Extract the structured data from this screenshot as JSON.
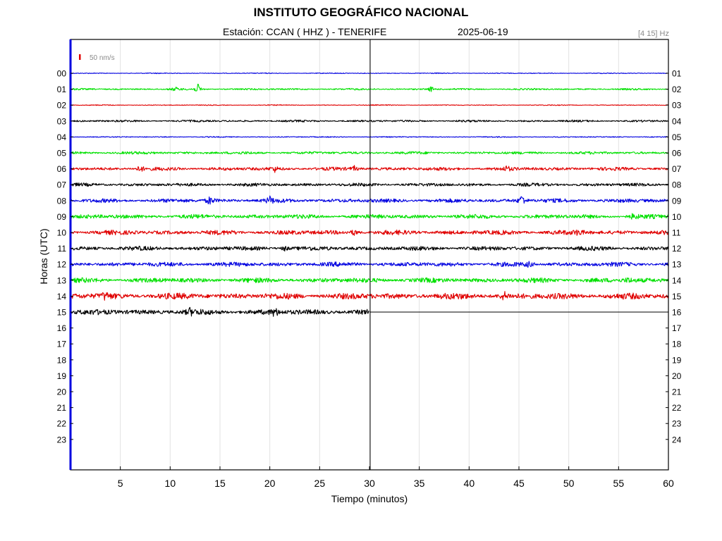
{
  "header": {
    "title": "INSTITUTO GEOGRÁFICO NACIONAL",
    "station": "Estación:  CCAN ( HHZ ) - TENERIFE",
    "date": "2025-06-19",
    "filter": "[4 15] Hz"
  },
  "scale_bar": {
    "label": "50 nm/s",
    "color": "#e00000"
  },
  "colors": {
    "blue": "#0000e0",
    "green": "#00e000",
    "red": "#e00000",
    "black": "#000000"
  },
  "chart_data": {
    "type": "line",
    "title": "INSTITUTO GEOGRÁFICO NACIONAL",
    "xlabel": "Tiempo (minutos)",
    "ylabel": "Horas (UTC)",
    "xlim": [
      0,
      60
    ],
    "x_ticks": [
      "5",
      "10",
      "15",
      "20",
      "25",
      "30",
      "35",
      "40",
      "45",
      "50",
      "55",
      "60"
    ],
    "x_tick_values": [
      5,
      10,
      15,
      20,
      25,
      30,
      35,
      40,
      45,
      50,
      55,
      60
    ],
    "y_labels_left": [
      "00",
      "01",
      "02",
      "03",
      "04",
      "05",
      "06",
      "07",
      "08",
      "09",
      "10",
      "11",
      "12",
      "13",
      "14",
      "15",
      "16",
      "17",
      "18",
      "19",
      "20",
      "21",
      "22",
      "23"
    ],
    "y_labels_right": [
      "01",
      "02",
      "03",
      "04",
      "05",
      "06",
      "07",
      "08",
      "09",
      "10",
      "11",
      "12",
      "13",
      "14",
      "15",
      "16",
      "17",
      "18",
      "19",
      "20",
      "21",
      "22",
      "23",
      "24"
    ],
    "grid": true,
    "series": [
      {
        "hour": 0,
        "color": "blue",
        "amplitude": 0.5,
        "end_minute": 60,
        "events": []
      },
      {
        "hour": 1,
        "color": "green",
        "amplitude": 1.0,
        "end_minute": 60,
        "events": [
          [
            10.5,
            3
          ],
          [
            12.8,
            7
          ],
          [
            36.2,
            4
          ]
        ]
      },
      {
        "hour": 2,
        "color": "red",
        "amplitude": 0.5,
        "end_minute": 60,
        "events": []
      },
      {
        "hour": 3,
        "color": "black",
        "amplitude": 1.2,
        "end_minute": 60,
        "events": []
      },
      {
        "hour": 4,
        "color": "blue",
        "amplitude": 0.6,
        "end_minute": 60,
        "events": []
      },
      {
        "hour": 5,
        "color": "green",
        "amplitude": 1.6,
        "end_minute": 60,
        "events": []
      },
      {
        "hour": 6,
        "color": "red",
        "amplitude": 2.0,
        "end_minute": 60,
        "events": [
          [
            7.0,
            5
          ],
          [
            20.5,
            3.5
          ],
          [
            28.5,
            3.5
          ],
          [
            43.8,
            3.5
          ]
        ]
      },
      {
        "hour": 7,
        "color": "black",
        "amplitude": 1.9,
        "end_minute": 60,
        "events": []
      },
      {
        "hour": 8,
        "color": "blue",
        "amplitude": 2.3,
        "end_minute": 60,
        "events": [
          [
            14.0,
            6
          ],
          [
            20.0,
            5
          ],
          [
            45.3,
            9
          ]
        ]
      },
      {
        "hour": 9,
        "color": "green",
        "amplitude": 2.5,
        "end_minute": 60,
        "events": [
          [
            56.5,
            4
          ]
        ]
      },
      {
        "hour": 10,
        "color": "red",
        "amplitude": 2.7,
        "end_minute": 60,
        "events": [
          [
            28.5,
            4.5
          ],
          [
            51.0,
            4
          ]
        ]
      },
      {
        "hour": 11,
        "color": "black",
        "amplitude": 2.5,
        "end_minute": 60,
        "events": [
          [
            21.5,
            4
          ]
        ]
      },
      {
        "hour": 12,
        "color": "blue",
        "amplitude": 2.6,
        "end_minute": 60,
        "events": [
          [
            46.0,
            3.5
          ]
        ]
      },
      {
        "hour": 13,
        "color": "green",
        "amplitude": 2.8,
        "end_minute": 60,
        "events": [
          [
            56.0,
            3.5
          ]
        ]
      },
      {
        "hour": 14,
        "color": "red",
        "amplitude": 3.6,
        "end_minute": 60,
        "events": [
          [
            3.5,
            5
          ],
          [
            43.5,
            5.5
          ]
        ]
      },
      {
        "hour": 15,
        "color": "black",
        "amplitude": 3.2,
        "end_minute": 30,
        "events": [
          [
            20.5,
            6
          ],
          [
            12.0,
            4
          ]
        ]
      }
    ]
  }
}
